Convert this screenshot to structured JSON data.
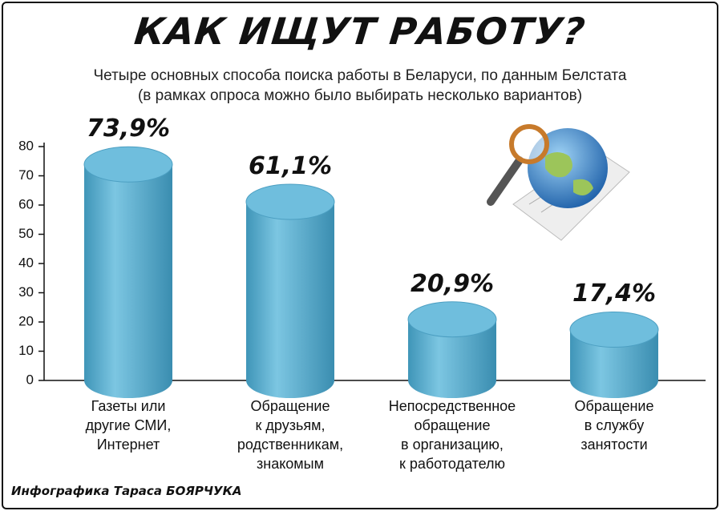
{
  "chart_data": {
    "type": "bar",
    "title": "КАК ИЩУТ РАБОТУ?",
    "subtitle": "Четыре основных способа поиска работы в Беларуси, по данным Белстата\n(в рамках опроса можно было выбирать несколько вариантов)",
    "categories": [
      "Газеты или\nдругие СМИ,\nИнтернет",
      "Обращение\nк друзьям,\nродственникам,\nзнакомым",
      "Непосредственное\nобращение\nв организацию,\nк работодателю",
      "Обращение\nв службу\nзанятости"
    ],
    "values": [
      73.9,
      61.1,
      20.9,
      17.4
    ],
    "value_labels": [
      "73,9%",
      "61,1%",
      "20,9%",
      "17,4%"
    ],
    "color": "#5fb3d3",
    "ylim": [
      0,
      80
    ],
    "yticks": [
      0,
      10,
      20,
      30,
      40,
      50,
      60,
      70,
      80
    ],
    "credit": "Инфографика Тараса БОЯРЧУКА"
  }
}
